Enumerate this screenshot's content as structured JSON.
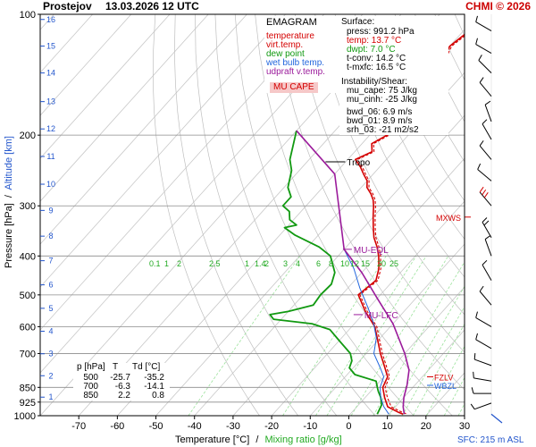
{
  "header": {
    "station": "Prostejov",
    "datetime": "13.03.2026 12 UTC",
    "copyright": "CHMI © 2026"
  },
  "legend": {
    "title": "EMAGRAM",
    "items": [
      {
        "label": "temperature",
        "color": "#d40000"
      },
      {
        "label": "virt.temp.",
        "color": "#d40000"
      },
      {
        "label": "dew point",
        "color": "#119911"
      },
      {
        "label": "wet bulb temp.",
        "color": "#2266dd"
      },
      {
        "label": "udpraft v.temp.",
        "color": "#9b1b9b"
      }
    ],
    "mu_cape_label": "MU CAPE"
  },
  "info": {
    "surface_title": "Surface:",
    "surface": [
      "press: 991.2 hPa",
      "temp: 13.7 °C",
      "dwpt: 7.0 °C",
      "t-conv: 14.2 °C",
      "t-mxfc: 16.5 °C"
    ],
    "instability_title": "Instability/Shear:",
    "instability": [
      "mu_cape: 75 J/kg",
      "mu_cinh: -25 J/kg",
      "bwd_06: 6.9 m/s",
      "bwd_01: 8.9 m/s",
      "srh_03: -21 m2/s2"
    ]
  },
  "table": {
    "headers": [
      "p [hPa]",
      "T",
      "Td [°C]"
    ],
    "rows": [
      [
        "500",
        "-25.7",
        "-35.2"
      ],
      [
        "700",
        "-6.3",
        "-14.1"
      ],
      [
        "850",
        "2.2",
        "0.8"
      ]
    ]
  },
  "axes": {
    "y_label": "Pressure [hPa]",
    "y_label_sep": "/",
    "y2_label": "Altitude [km]",
    "x_label": "Temperature [°C]",
    "x_label_sep": "/",
    "x2_label": "Mixing ratio [g/kg]",
    "sfc_label": "SFC: 215 m ASL"
  },
  "chart_data": {
    "type": "line",
    "x_range": [
      -80,
      30
    ],
    "p_range": [
      100,
      1000
    ],
    "p_ticks": [
      100,
      200,
      300,
      400,
      500,
      600,
      700,
      850,
      925,
      1000
    ],
    "t_ticks": [
      -70,
      -60,
      -50,
      -40,
      -30,
      -20,
      -10,
      0,
      10,
      20,
      30
    ],
    "km_ticks": [
      {
        "km": 16,
        "p": 103
      },
      {
        "km": 15,
        "p": 120
      },
      {
        "km": 14,
        "p": 140
      },
      {
        "km": 13,
        "p": 165
      },
      {
        "km": 12,
        "p": 193
      },
      {
        "km": 11,
        "p": 226
      },
      {
        "km": 10,
        "p": 265
      },
      {
        "km": 9,
        "p": 308
      },
      {
        "km": 8,
        "p": 357
      },
      {
        "km": 7,
        "p": 411
      },
      {
        "km": 6,
        "p": 472
      },
      {
        "km": 5,
        "p": 540
      },
      {
        "km": 4,
        "p": 616
      },
      {
        "km": 3,
        "p": 701
      },
      {
        "km": 2,
        "p": 795
      },
      {
        "km": 1,
        "p": 899
      }
    ],
    "mixing_ratio_labels": [
      "0.1",
      "1",
      "2",
      "2.5",
      "1",
      "1.4",
      "2",
      "3",
      "4",
      "6",
      "8",
      "10",
      "12",
      "15",
      "20",
      "25"
    ],
    "series": [
      {
        "name": "temperature",
        "color": "#d40000",
        "points": [
          [
            -60,
            100
          ],
          [
            -58.5,
            110
          ],
          [
            -60,
            120
          ],
          [
            -58.5,
            130
          ],
          [
            -59.5,
            140
          ],
          [
            -58,
            150
          ],
          [
            -57,
            160
          ],
          [
            -58.5,
            170
          ],
          [
            -57.5,
            180
          ],
          [
            -56,
            190
          ],
          [
            -55.5,
            200
          ],
          [
            -57.5,
            210
          ],
          [
            -55.5,
            220
          ],
          [
            -58,
            230
          ],
          [
            -55,
            240
          ],
          [
            -52.5,
            250
          ],
          [
            -50,
            260
          ],
          [
            -48.5,
            270
          ],
          [
            -46,
            280
          ],
          [
            -44,
            290
          ],
          [
            -42.5,
            300
          ],
          [
            -40,
            320
          ],
          [
            -37.5,
            340
          ],
          [
            -35,
            360
          ],
          [
            -32,
            380
          ],
          [
            -29.5,
            400
          ],
          [
            -26.5,
            430
          ],
          [
            -24.5,
            460
          ],
          [
            -25.7,
            500
          ],
          [
            -20,
            550
          ],
          [
            -14,
            600
          ],
          [
            -10,
            650
          ],
          [
            -6.3,
            700
          ],
          [
            -2.5,
            750
          ],
          [
            1,
            800
          ],
          [
            2.2,
            850
          ],
          [
            5,
            900
          ],
          [
            8,
            950
          ],
          [
            12,
            980
          ],
          [
            13.7,
            991
          ]
        ]
      },
      {
        "name": "virt.temp.",
        "color": "#d40000",
        "points": [
          [
            -59.5,
            100
          ],
          [
            -58,
            110
          ],
          [
            -59.5,
            120
          ],
          [
            -58,
            130
          ],
          [
            -59,
            140
          ],
          [
            -57.5,
            150
          ],
          [
            -56.5,
            160
          ],
          [
            -58,
            170
          ],
          [
            -57,
            180
          ],
          [
            -55.5,
            190
          ],
          [
            -55,
            200
          ],
          [
            -57,
            210
          ],
          [
            -55,
            220
          ],
          [
            -57.5,
            230
          ],
          [
            -54.5,
            240
          ],
          [
            -52,
            250
          ],
          [
            -49.5,
            260
          ],
          [
            -48,
            270
          ],
          [
            -45.5,
            280
          ],
          [
            -43.5,
            290
          ],
          [
            -42,
            300
          ],
          [
            -39.5,
            320
          ],
          [
            -37,
            340
          ],
          [
            -34.5,
            360
          ],
          [
            -31.5,
            380
          ],
          [
            -29,
            400
          ],
          [
            -26,
            430
          ],
          [
            -24,
            460
          ],
          [
            -25.3,
            500
          ],
          [
            -19.5,
            550
          ],
          [
            -13.5,
            600
          ],
          [
            -9.5,
            650
          ],
          [
            -5.8,
            700
          ],
          [
            -2,
            750
          ],
          [
            1.5,
            800
          ],
          [
            2.8,
            850
          ],
          [
            5.7,
            900
          ],
          [
            8.9,
            950
          ],
          [
            13,
            980
          ],
          [
            14.8,
            991
          ]
        ]
      },
      {
        "name": "dew point",
        "color": "#119911",
        "points": [
          [
            -80,
            195
          ],
          [
            -75,
            230
          ],
          [
            -72,
            245
          ],
          [
            -69,
            270
          ],
          [
            -66,
            285
          ],
          [
            -66,
            300
          ],
          [
            -63,
            310
          ],
          [
            -61,
            325
          ],
          [
            -58,
            335
          ],
          [
            -60.5,
            340
          ],
          [
            -56,
            355
          ],
          [
            -47,
            380
          ],
          [
            -42,
            400
          ],
          [
            -37,
            440
          ],
          [
            -35.2,
            470
          ],
          [
            -35.5,
            500
          ],
          [
            -35,
            530
          ],
          [
            -40,
            550
          ],
          [
            -44,
            560
          ],
          [
            -42,
            575
          ],
          [
            -31,
            590
          ],
          [
            -25,
            610
          ],
          [
            -20,
            650
          ],
          [
            -14.1,
            700
          ],
          [
            -12,
            730
          ],
          [
            -11,
            760
          ],
          [
            -8,
            790
          ],
          [
            -1,
            820
          ],
          [
            0.8,
            850
          ],
          [
            2,
            870
          ],
          [
            4,
            900
          ],
          [
            6,
            940
          ],
          [
            7,
            991
          ]
        ]
      },
      {
        "name": "wet bulb temp.",
        "color": "#2266dd",
        "points": [
          [
            -40,
            385
          ],
          [
            -33,
            430
          ],
          [
            -27,
            480
          ],
          [
            -20,
            540
          ],
          [
            -15,
            590
          ],
          [
            -11,
            640
          ],
          [
            -8,
            700
          ],
          [
            -3,
            760
          ],
          [
            0,
            800
          ],
          [
            1.5,
            850
          ],
          [
            4,
            900
          ],
          [
            7,
            950
          ],
          [
            10,
            991
          ]
        ]
      },
      {
        "name": "udpraft v.temp.",
        "color": "#9b1b9b",
        "points": [
          [
            -80,
            195
          ],
          [
            -60,
            250
          ],
          [
            -40,
            385
          ],
          [
            -30,
            440
          ],
          [
            -20,
            510
          ],
          [
            -10,
            590
          ],
          [
            0,
            700
          ],
          [
            5,
            770
          ],
          [
            8,
            840
          ],
          [
            10,
            900
          ],
          [
            12,
            950
          ],
          [
            14,
            991
          ]
        ]
      }
    ],
    "annotations": [
      {
        "label": "Tropo",
        "t": -62,
        "p": 233,
        "color": "#000000"
      },
      {
        "label": "MU-EQL",
        "t": -38,
        "p": 385,
        "color": "#9b1b9b"
      },
      {
        "label": "MU-LFC",
        "t": -20,
        "p": 560,
        "color": "#9b1b9b"
      },
      {
        "label": "MXWS",
        "t": 36,
        "p": 320,
        "color": "#d40000"
      },
      {
        "label": "FZLV",
        "t": 24,
        "p": 800,
        "color": "#d40000"
      },
      {
        "label": "WBZL",
        "t": 24,
        "p": 840,
        "color": "#2266dd"
      }
    ],
    "wind_barbs": [
      {
        "p": 110,
        "dir": 300,
        "spd": 10
      },
      {
        "p": 125,
        "dir": 300,
        "spd": 10
      },
      {
        "p": 140,
        "dir": 315,
        "spd": 10
      },
      {
        "p": 160,
        "dir": 320,
        "spd": 10
      },
      {
        "p": 185,
        "dir": 340,
        "spd": 10
      },
      {
        "p": 205,
        "dir": 330,
        "spd": 10
      },
      {
        "p": 230,
        "dir": 320,
        "spd": 10
      },
      {
        "p": 260,
        "dir": 310,
        "spd": 10
      },
      {
        "p": 300,
        "dir": 320,
        "spd": 25
      },
      {
        "p": 360,
        "dir": 330,
        "spd": 15
      },
      {
        "p": 400,
        "dir": 340,
        "spd": 10
      },
      {
        "p": 460,
        "dir": 330,
        "spd": 10
      },
      {
        "p": 530,
        "dir": 320,
        "spd": 10
      },
      {
        "p": 600,
        "dir": 300,
        "spd": 10
      },
      {
        "p": 680,
        "dir": 300,
        "spd": 10
      },
      {
        "p": 750,
        "dir": 290,
        "spd": 10
      },
      {
        "p": 820,
        "dir": 280,
        "spd": 5
      },
      {
        "p": 880,
        "dir": 270,
        "spd": 5
      },
      {
        "p": 930,
        "dir": 250,
        "spd": 5
      }
    ]
  }
}
